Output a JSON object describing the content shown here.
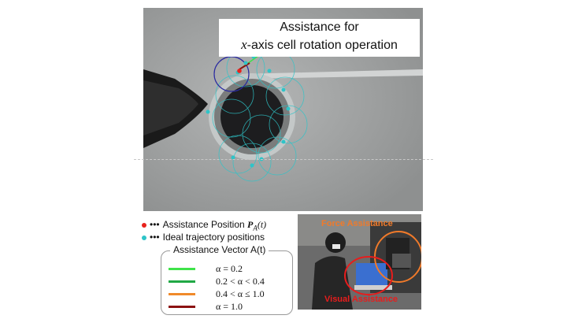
{
  "title": {
    "line1": "Assistance for",
    "line2_var": "x",
    "line2_rest": "-axis cell rotation operation"
  },
  "legend": {
    "assist_dots": "•••",
    "assist_label": "Assistance Position ",
    "assist_symbol": "P",
    "assist_sub": "A",
    "assist_arg": "(t)",
    "assist_color": "#e8221c",
    "ideal_dots": "•••",
    "ideal_label": "Ideal trajectory positions",
    "ideal_color": "#2ec4c8"
  },
  "vector_box": {
    "title": "Assistance Vector A(t)",
    "rows": [
      {
        "label": "α = 0.2",
        "color": "#3fe34a"
      },
      {
        "label": "0.2 < α < 0.4",
        "color": "#20a845"
      },
      {
        "label": "0.4 < α ≤ 1.0",
        "color": "#f08a2a"
      },
      {
        "label": "α = 1.0",
        "color": "#8c1212"
      }
    ]
  },
  "photo": {
    "force_label": "Force Assistance",
    "force_color": "#f07a2a",
    "visual_label": "Visual Assistance",
    "visual_color": "#e81c1c"
  }
}
